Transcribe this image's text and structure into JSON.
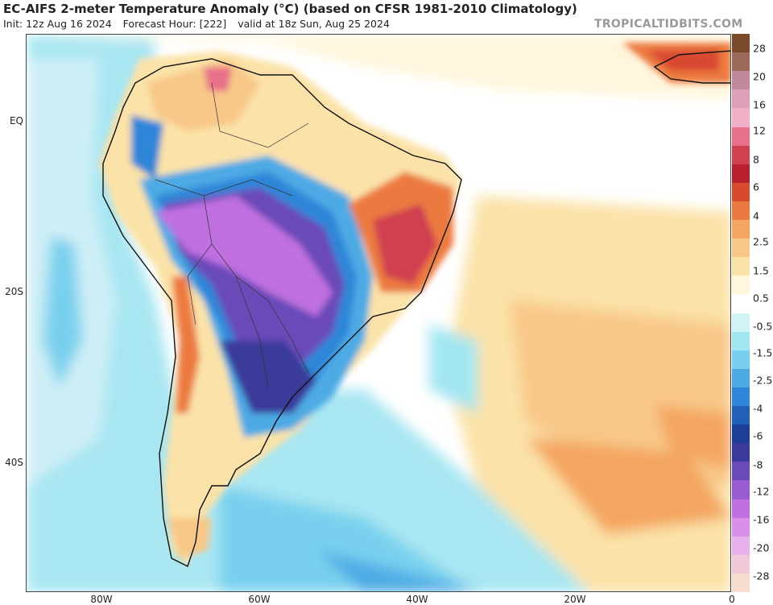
{
  "header": {
    "title": "EC-AIFS 2-meter Temperature Anomaly (°C) (based on CFSR 1981-2010 Climatology)",
    "init": "Init: 12z Aug 16 2024",
    "forecast_hour": "Forecast Hour: [222]",
    "valid": "valid at 18z Sun, Aug 25 2024",
    "brand": "TROPICALTIDBITS.COM"
  },
  "axes": {
    "lat_labels": [
      "EQ",
      "20S",
      "40S"
    ],
    "lon_labels": [
      "80W",
      "60W",
      "40W",
      "20W",
      "0"
    ]
  },
  "colorbar": {
    "labels": [
      "28",
      "20",
      "16",
      "12",
      "8",
      "6",
      "4",
      "2.5",
      "1.5",
      "0.5",
      "-0.5",
      "-1.5",
      "-2.5",
      "-4",
      "-6",
      "-8",
      "-12",
      "-16",
      "-20",
      "-28"
    ],
    "colors": [
      "#7a4a2a",
      "#9c6a5a",
      "#c08a9a",
      "#dca0b8",
      "#f0b0c8",
      "#e8708a",
      "#d04050",
      "#b82030",
      "#d84a30",
      "#ec7a40",
      "#f4a660",
      "#f8c888",
      "#fbe2a8",
      "#fff6dc",
      "#ffffff",
      "#d2f4f8",
      "#a2e6f2",
      "#78d0ee",
      "#4eaae4",
      "#2f86d8",
      "#2060b8",
      "#1c3e96",
      "#3a3a9a",
      "#6a4ab8",
      "#9a5ad0",
      "#c070e0",
      "#d890e8",
      "#e8b0ee",
      "#f0c8d8",
      "#f8dcd0"
    ]
  },
  "map_features": {
    "warm_anomaly_region": "Northeast Brazil",
    "cold_anomaly_region": "Central South America"
  }
}
